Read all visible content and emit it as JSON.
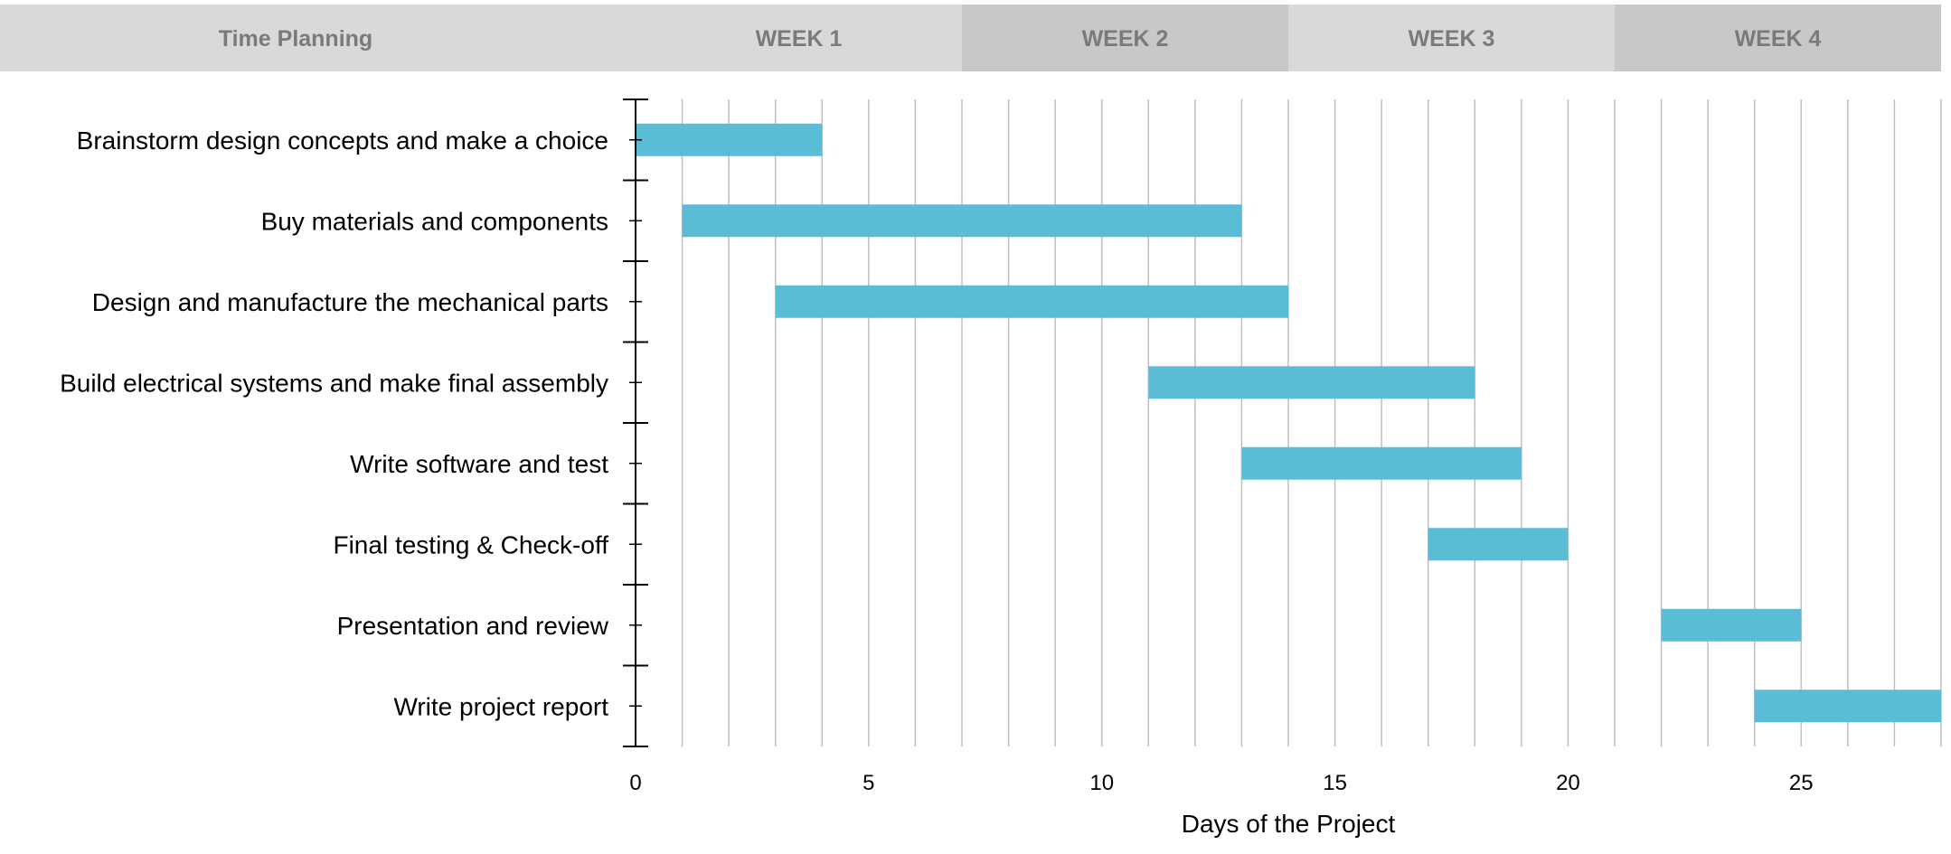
{
  "chart_data": {
    "type": "bar",
    "orientation": "horizontal",
    "subtype": "gantt",
    "header": {
      "title": "Time Planning",
      "weeks": [
        {
          "label": "WEEK 1",
          "start": 0,
          "end": 7,
          "color": "#d9d9d9"
        },
        {
          "label": "WEEK 2",
          "start": 7,
          "end": 14,
          "color": "#c8c8c8"
        },
        {
          "label": "WEEK 3",
          "start": 14,
          "end": 21,
          "color": "#d9d9d9"
        },
        {
          "label": "WEEK 4",
          "start": 21,
          "end": 28,
          "color": "#c8c8c8"
        }
      ]
    },
    "tasks": [
      {
        "name": "Brainstorm design concepts and make a choice",
        "start": 0,
        "end": 4
      },
      {
        "name": "Buy materials and components",
        "start": 1,
        "end": 13
      },
      {
        "name": "Design and manufacture the mechanical parts",
        "start": 3,
        "end": 14
      },
      {
        "name": "Build electrical systems and make final assembly",
        "start": 11,
        "end": 18
      },
      {
        "name": "Write software and test",
        "start": 13,
        "end": 19
      },
      {
        "name": "Final testing & Check-off",
        "start": 17,
        "end": 20
      },
      {
        "name": "Presentation and review",
        "start": 22,
        "end": 25
      },
      {
        "name": "Write project report",
        "start": 24,
        "end": 28
      }
    ],
    "xlabel": "Days of the Project",
    "xlim": [
      0,
      28
    ],
    "xticks": [
      0,
      5,
      10,
      15,
      20,
      25
    ],
    "grid": "vertical, every day",
    "bar_color": "#5bbcd6",
    "grid_color": "#bfbfbf"
  }
}
